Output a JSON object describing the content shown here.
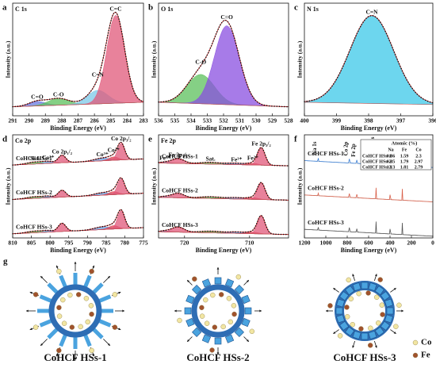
{
  "chart_data": [
    {
      "type": "spectrum",
      "label": "a",
      "title": "C 1s",
      "xlabel": "Binding Energy (eV)",
      "ylabel": "Intensity (a.u.)",
      "xlim": [
        291,
        283
      ],
      "xticks": [
        291,
        290,
        289,
        288,
        287,
        286,
        285,
        284,
        283
      ],
      "ylim": [
        0,
        100
      ],
      "fill": true,
      "series": [
        {
          "baseline": [
            8,
            12
          ],
          "peaks": [
            {
              "name": "C=O",
              "center": 289.5,
              "height": 4,
              "fwhm": 1.2,
              "color": "#6a78e0"
            },
            {
              "name": "C-O",
              "center": 288.2,
              "height": 6,
              "fwhm": 1.5,
              "color": "#5cc05c"
            },
            {
              "name": "C=N",
              "center": 285.8,
              "height": 12,
              "fwhm": 1.5,
              "color": "#7cc8e8"
            },
            {
              "name": "C=C",
              "center": 284.7,
              "height": 78,
              "fwhm": 1.3,
              "color": "#e0587a"
            }
          ]
        }
      ]
    },
    {
      "type": "spectrum",
      "label": "b",
      "title": "O 1s",
      "xlabel": "Binding Energy (eV)",
      "ylabel": "Intensity (a.u.)",
      "xlim": [
        536,
        528
      ],
      "xticks": [
        536,
        535,
        534,
        533,
        532,
        531,
        530,
        529,
        528
      ],
      "ylim": [
        0,
        100
      ],
      "fill": true,
      "series": [
        {
          "baseline": [
            12,
            8
          ],
          "peaks": [
            {
              "name": "C-O",
              "center": 533.4,
              "height": 26,
              "fwhm": 2.0,
              "color": "#5cc05c"
            },
            {
              "name": "C=O",
              "center": 531.8,
              "height": 70,
              "fwhm": 1.8,
              "color": "#8a4fe0"
            }
          ]
        }
      ]
    },
    {
      "type": "spectrum",
      "label": "c",
      "title": "N 1s",
      "xlabel": "Binding Energy (eV)",
      "ylabel": "Intensity (a.u.)",
      "xlim": [
        400,
        396
      ],
      "xticks": [
        400,
        399,
        398,
        397,
        396
      ],
      "ylim": [
        0,
        100
      ],
      "fill": true,
      "series": [
        {
          "baseline": [
            12,
            10
          ],
          "peaks": [
            {
              "name": "C=N",
              "center": 397.9,
              "height": 78,
              "fwhm": 1.6,
              "color": "#3cc8e8"
            }
          ]
        }
      ]
    },
    {
      "type": "spectrum",
      "label": "d",
      "title": "Co 2p",
      "xlabel": "Binding Energy (eV)",
      "ylabel": "Intensity (a.u.)",
      "xlim": [
        810,
        775
      ],
      "xticks": [
        810,
        805,
        800,
        795,
        790,
        785,
        780,
        775
      ],
      "ylim": [
        0,
        300
      ],
      "fill": true,
      "series": [
        {
          "name": "CoHCF HSs-1",
          "baseline": [
            12,
            30
          ],
          "peaks": [
            {
              "name": "Sat.",
              "center": 804,
              "height": 6,
              "fwhm": 5,
              "color": "#5cc05c"
            },
            {
              "name": "Co³⁺",
              "center": 800.5,
              "height": 5,
              "fwhm": 3,
              "color": "#6aa0e0"
            },
            {
              "name": "Co 2p₁/₂",
              "center": 796.8,
              "height": 22,
              "fwhm": 2.4,
              "color": "#e0587a"
            },
            {
              "name": "Co³⁺",
              "center": 786,
              "height": 8,
              "fwhm": 5,
              "color": "#6aa0e0"
            },
            {
              "name": "Co²⁺",
              "center": 783,
              "height": 10,
              "fwhm": 3,
              "color": "#e04050"
            },
            {
              "name": "Co 2p₃/₂",
              "center": 781,
              "height": 48,
              "fwhm": 2.3,
              "color": "#e0587a"
            }
          ]
        },
        {
          "name": "CoHCF HSs-2",
          "baseline": [
            12,
            30
          ],
          "peaks": [
            {
              "center": 804,
              "height": 5,
              "fwhm": 5,
              "color": "#5cc05c"
            },
            {
              "center": 800.5,
              "height": 4,
              "fwhm": 3,
              "color": "#6aa0e0"
            },
            {
              "center": 796.8,
              "height": 20,
              "fwhm": 2.4,
              "color": "#e0587a"
            },
            {
              "center": 786,
              "height": 7,
              "fwhm": 5,
              "color": "#6aa0e0"
            },
            {
              "center": 783,
              "height": 9,
              "fwhm": 3,
              "color": "#e04050"
            },
            {
              "center": 781,
              "height": 45,
              "fwhm": 2.3,
              "color": "#e0587a"
            }
          ]
        },
        {
          "name": "CoHCF HSs-3",
          "baseline": [
            12,
            30
          ],
          "peaks": [
            {
              "center": 804,
              "height": 5,
              "fwhm": 5,
              "color": "#5cc05c"
            },
            {
              "center": 800.5,
              "height": 4,
              "fwhm": 3,
              "color": "#6aa0e0"
            },
            {
              "center": 796.8,
              "height": 24,
              "fwhm": 2.4,
              "color": "#e0587a"
            },
            {
              "center": 786,
              "height": 8,
              "fwhm": 5,
              "color": "#6aa0e0"
            },
            {
              "center": 783,
              "height": 10,
              "fwhm": 3,
              "color": "#e04050"
            },
            {
              "center": 781,
              "height": 52,
              "fwhm": 2.3,
              "color": "#e0587a"
            }
          ]
        }
      ]
    },
    {
      "type": "spectrum",
      "label": "e",
      "title": "Fe 2p",
      "xlabel": "Binding Energy (eV)",
      "ylabel": "Intensity (a.u.)",
      "xlim": [
        724,
        704
      ],
      "xticks": [
        720,
        710
      ],
      "ylim": [
        0,
        300
      ],
      "fill": true,
      "series": [
        {
          "name": "CoHCF HSs-1",
          "baseline": [
            18,
            10
          ],
          "peaks": [
            {
              "name": "Fe³⁺",
              "center": 723,
              "height": 3,
              "fwhm": 2,
              "color": "#6aa0e0"
            },
            {
              "name": "Fe 2p₁/₂",
              "center": 721,
              "height": 14,
              "fwhm": 2.2,
              "color": "#e0587a"
            },
            {
              "name": "Sat.",
              "center": 716,
              "height": 5,
              "fwhm": 4,
              "color": "#5cc05c"
            },
            {
              "name": "Fe³⁺",
              "center": 712,
              "height": 4,
              "fwhm": 3,
              "color": "#6aa0e0"
            },
            {
              "name": "Fe²⁺",
              "center": 709.5,
              "height": 5,
              "fwhm": 2,
              "color": "#e04050"
            },
            {
              "name": "Fe 2p₃/₂",
              "center": 708.2,
              "height": 50,
              "fwhm": 1.4,
              "color": "#e0587a"
            }
          ]
        },
        {
          "name": "CoHCF HSs-2",
          "baseline": [
            18,
            10
          ],
          "peaks": [
            {
              "center": 723,
              "height": 3,
              "fwhm": 2,
              "color": "#6aa0e0"
            },
            {
              "center": 721,
              "height": 13,
              "fwhm": 2.2,
              "color": "#e0587a"
            },
            {
              "center": 716,
              "height": 5,
              "fwhm": 4,
              "color": "#5cc05c"
            },
            {
              "center": 712,
              "height": 4,
              "fwhm": 3,
              "color": "#6aa0e0"
            },
            {
              "center": 709.5,
              "height": 5,
              "fwhm": 2,
              "color": "#e04050"
            },
            {
              "center": 708.2,
              "height": 48,
              "fwhm": 1.4,
              "color": "#e0587a"
            }
          ]
        },
        {
          "name": "CoHCF HSs-3",
          "baseline": [
            18,
            10
          ],
          "peaks": [
            {
              "center": 723,
              "height": 3,
              "fwhm": 2,
              "color": "#6aa0e0"
            },
            {
              "center": 721,
              "height": 15,
              "fwhm": 2.2,
              "color": "#e0587a"
            },
            {
              "center": 716,
              "height": 5,
              "fwhm": 4,
              "color": "#5cc05c"
            },
            {
              "center": 712,
              "height": 4,
              "fwhm": 3,
              "color": "#6aa0e0"
            },
            {
              "center": 709.5,
              "height": 5,
              "fwhm": 2,
              "color": "#e04050"
            },
            {
              "center": 708.2,
              "height": 52,
              "fwhm": 1.4,
              "color": "#e0587a"
            }
          ]
        }
      ]
    },
    {
      "type": "spectrum",
      "label": "f",
      "xlabel": "Binding Energy (eV)",
      "ylabel": "Intensity (a.u.)",
      "xlim": [
        1200,
        0
      ],
      "xticks": [
        1200,
        1000,
        800,
        600,
        400,
        200,
        0
      ],
      "ylim": [
        0,
        300
      ],
      "fill": false,
      "peak_labels": "vertical",
      "series": [
        {
          "name": "CoHCF HSs-1",
          "color": "#3a7fd5",
          "baseline": [
            25,
            5
          ],
          "peaks": [
            {
              "name": "Na 1s",
              "center": 1071,
              "height": 10,
              "fwhm": 6
            },
            {
              "name": "Co 2p",
              "center": 780,
              "height": 12,
              "fwhm": 8
            },
            {
              "name": "Fe 2p",
              "center": 710,
              "height": 10,
              "fwhm": 8
            },
            {
              "name": "O 1s",
              "center": 531,
              "height": 40,
              "fwhm": 4
            },
            {
              "name": "N 1s",
              "center": 398,
              "height": 30,
              "fwhm": 4
            },
            {
              "name": "C 1s",
              "center": 285,
              "height": 35,
              "fwhm": 4
            }
          ]
        },
        {
          "name": "CoHCF HSs-2",
          "color": "#d9604a",
          "baseline": [
            25,
            5
          ],
          "peaks": [
            {
              "center": 1071,
              "height": 8,
              "fwhm": 6
            },
            {
              "center": 780,
              "height": 11,
              "fwhm": 8
            },
            {
              "center": 710,
              "height": 10,
              "fwhm": 8
            },
            {
              "center": 531,
              "height": 38,
              "fwhm": 4
            },
            {
              "center": 398,
              "height": 28,
              "fwhm": 4
            },
            {
              "center": 285,
              "height": 33,
              "fwhm": 4
            }
          ]
        },
        {
          "name": "CoHCF HSs-3",
          "color": "#555555",
          "baseline": [
            25,
            5
          ],
          "peaks": [
            {
              "center": 1071,
              "height": 9,
              "fwhm": 6
            },
            {
              "center": 780,
              "height": 12,
              "fwhm": 8
            },
            {
              "center": 710,
              "height": 10,
              "fwhm": 8
            },
            {
              "center": 531,
              "height": 40,
              "fwhm": 4
            },
            {
              "center": 398,
              "height": 29,
              "fwhm": 4
            },
            {
              "center": 285,
              "height": 34,
              "fwhm": 4
            }
          ]
        }
      ],
      "table": {
        "title": "Atomic (%)",
        "columns": [
          "Na",
          "Fe",
          "Co"
        ],
        "rows": [
          {
            "name": "CoHCF HSs-1",
            "values": [
              0.86,
              1.59,
              2.3
            ]
          },
          {
            "name": "CoHCF HSs-2",
            "values": [
              0.85,
              1.79,
              2.97
            ]
          },
          {
            "name": "CoHCF HSs-3",
            "values": [
              1.13,
              1.81,
              2.79
            ]
          }
        ]
      }
    }
  ],
  "diagram": {
    "label": "g",
    "titles": [
      "CoHCF HSs-1",
      "CoHCF HSs-2",
      "CoHCF HSs-3"
    ],
    "legend": [
      "Co",
      "Fe"
    ]
  }
}
